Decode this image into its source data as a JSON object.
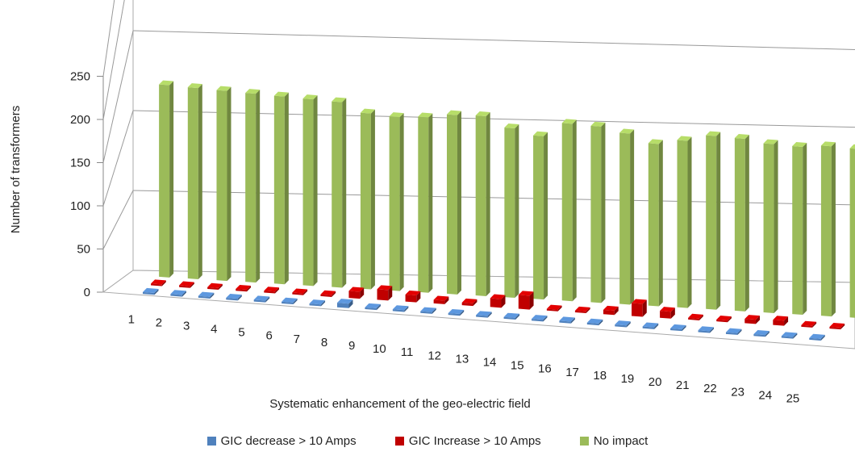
{
  "chart_data": {
    "type": "bar",
    "variant": "3d-clustered-depth",
    "xlabel": "Systematic enhancement of the geo-electric field",
    "ylabel": "Number of transformers",
    "ylim": [
      0,
      250
    ],
    "yticks": [
      0,
      50,
      100,
      150,
      200,
      250
    ],
    "grid": true,
    "legend_position": "bottom",
    "categories": [
      "1",
      "2",
      "3",
      "4",
      "5",
      "6",
      "7",
      "8",
      "9",
      "10",
      "11",
      "12",
      "13",
      "14",
      "15",
      "16",
      "17",
      "18",
      "19",
      "20",
      "21",
      "22",
      "23",
      "24",
      "25"
    ],
    "series": [
      {
        "name": "GIC decrease > 10 Amps",
        "color": "#4f81bd",
        "values": [
          2,
          2,
          2,
          2,
          2,
          2,
          2,
          5,
          2,
          2,
          2,
          2,
          2,
          2,
          2,
          2,
          2,
          2,
          2,
          2,
          2,
          2,
          2,
          2,
          2
        ]
      },
      {
        "name": "GIC Increase > 10 Amps",
        "color": "#c00000",
        "values": [
          2,
          2,
          2,
          2,
          2,
          2,
          2,
          8,
          12,
          8,
          4,
          3,
          10,
          16,
          2,
          2,
          5,
          15,
          8,
          2,
          2,
          5,
          6,
          2,
          2
        ]
      },
      {
        "name": "No impact",
        "color": "#9bbb59",
        "values": [
          223,
          222,
          221,
          220,
          219,
          218,
          217,
          206,
          204,
          206,
          211,
          212,
          200,
          193,
          210,
          209,
          203,
          193,
          199,
          207,
          206,
          202,
          201,
          204,
          203
        ]
      }
    ]
  }
}
